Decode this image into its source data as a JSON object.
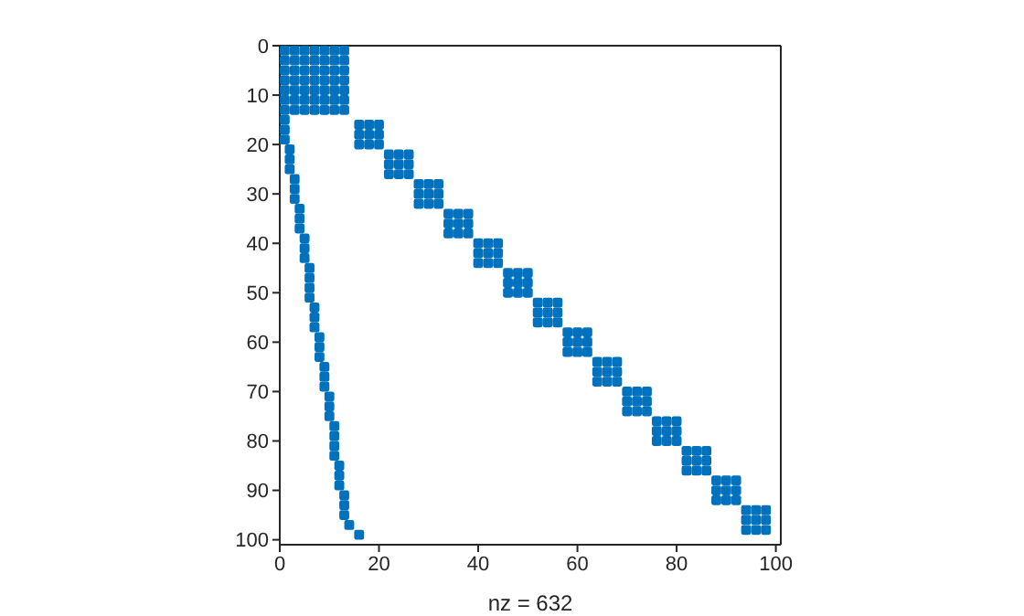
{
  "chart_data": {
    "type": "scatter",
    "xlabel": "nz = 632",
    "xlim": [
      0,
      101
    ],
    "ylim": [
      101,
      0
    ],
    "xticks": [
      0,
      20,
      40,
      60,
      80,
      100
    ],
    "yticks": [
      0,
      10,
      20,
      30,
      40,
      50,
      60,
      70,
      80,
      90,
      100
    ],
    "grid": false,
    "legend": false,
    "marker": "square",
    "series": [
      {
        "color": "#0072bd",
        "x": [
          1,
          3,
          5,
          7,
          9,
          11,
          13,
          1,
          3,
          5,
          7,
          9,
          11,
          13,
          1,
          3,
          5,
          7,
          9,
          11,
          13,
          1,
          3,
          5,
          7,
          9,
          11,
          13,
          1,
          3,
          5,
          7,
          9,
          11,
          13,
          1,
          3,
          5,
          7,
          9,
          11,
          13,
          1,
          3,
          5,
          7,
          9,
          11,
          13
        ],
        "values": [
          1,
          1,
          1,
          1,
          1,
          1,
          1,
          3,
          3,
          3,
          3,
          3,
          3,
          3,
          5,
          5,
          5,
          5,
          5,
          5,
          5,
          7,
          7,
          7,
          7,
          7,
          7,
          7,
          9,
          9,
          9,
          9,
          9,
          9,
          9,
          11,
          11,
          11,
          11,
          11,
          11,
          11,
          13,
          13,
          13,
          13,
          13,
          13,
          13
        ]
      },
      {
        "color": "#0072bd",
        "x": [
          16,
          18,
          20,
          16,
          18,
          20,
          16,
          18,
          20,
          22,
          24,
          26,
          22,
          24,
          26,
          22,
          24,
          26,
          28,
          30,
          32,
          28,
          30,
          32,
          28,
          30,
          32,
          34,
          36,
          38,
          34,
          36,
          38,
          34,
          36,
          38,
          40,
          42,
          44,
          40,
          42,
          44,
          40,
          42,
          44,
          46,
          48,
          50,
          46,
          48,
          50,
          46,
          48,
          50,
          52,
          54,
          56,
          52,
          54,
          56,
          52,
          54,
          56,
          58,
          60,
          62,
          58,
          60,
          62,
          58,
          60,
          62,
          64,
          66,
          68,
          64,
          66,
          68,
          64,
          66,
          68,
          70,
          72,
          74,
          70,
          72,
          74,
          70,
          72,
          74,
          76,
          78,
          80,
          76,
          78,
          80,
          76,
          78,
          80,
          82,
          84,
          86,
          82,
          84,
          86,
          82,
          84,
          86,
          88,
          90,
          92,
          88,
          90,
          92,
          88,
          90,
          92,
          94,
          96,
          98,
          94,
          96,
          98,
          94,
          96,
          98
        ],
        "values": [
          16,
          16,
          16,
          18,
          18,
          18,
          20,
          20,
          20,
          22,
          22,
          22,
          24,
          24,
          24,
          26,
          26,
          26,
          28,
          28,
          28,
          30,
          30,
          30,
          32,
          32,
          32,
          34,
          34,
          34,
          36,
          36,
          36,
          38,
          38,
          38,
          40,
          40,
          40,
          42,
          42,
          42,
          44,
          44,
          44,
          46,
          46,
          46,
          48,
          48,
          48,
          50,
          50,
          50,
          52,
          52,
          52,
          54,
          54,
          54,
          56,
          56,
          56,
          58,
          58,
          58,
          60,
          60,
          60,
          62,
          62,
          62,
          64,
          64,
          64,
          66,
          66,
          66,
          68,
          68,
          68,
          70,
          70,
          70,
          72,
          72,
          72,
          74,
          74,
          74,
          76,
          76,
          76,
          78,
          78,
          78,
          80,
          80,
          80,
          82,
          82,
          82,
          84,
          84,
          84,
          86,
          86,
          86,
          88,
          88,
          88,
          90,
          90,
          90,
          92,
          92,
          92,
          94,
          94,
          94,
          96,
          96,
          96,
          98,
          98,
          98
        ]
      },
      {
        "color": "#0072bd",
        "x": [
          1,
          1,
          1,
          2,
          2,
          2,
          3,
          3,
          3,
          4,
          4,
          4,
          5,
          5,
          5,
          6,
          6,
          6,
          6,
          7,
          7,
          7,
          8,
          8,
          8,
          9,
          9,
          9,
          10,
          10,
          10,
          11,
          11,
          11,
          11,
          12,
          12,
          12,
          13,
          13,
          13,
          14,
          16
        ],
        "values": [
          15,
          17,
          19,
          21,
          23,
          25,
          27,
          29,
          31,
          33,
          35,
          37,
          39,
          41,
          43,
          45,
          47,
          49,
          51,
          53,
          55,
          57,
          59,
          61,
          63,
          65,
          67,
          69,
          71,
          73,
          75,
          77,
          79,
          81,
          83,
          85,
          87,
          89,
          91,
          93,
          95,
          97,
          99
        ]
      }
    ]
  }
}
